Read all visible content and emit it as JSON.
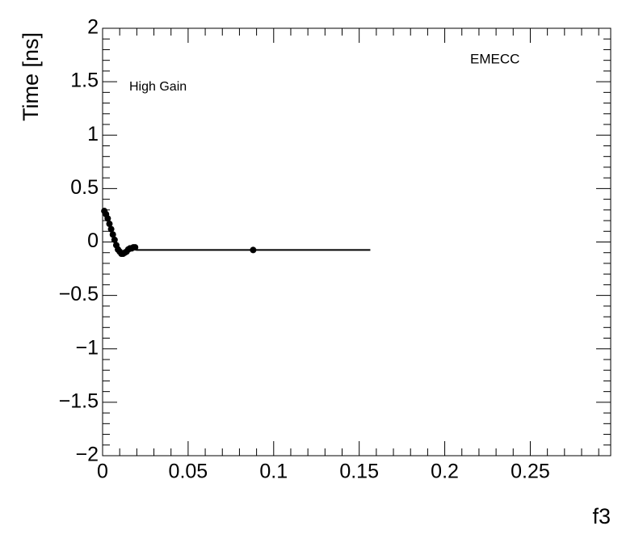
{
  "chart_data": {
    "type": "scatter",
    "ylabel": "Time [ns]",
    "xlabel": "f3",
    "annotations": [
      "High Gain",
      "EMECC"
    ],
    "x": [
      0.001,
      0.002,
      0.003,
      0.004,
      0.005,
      0.006,
      0.007,
      0.008,
      0.009,
      0.01,
      0.011,
      0.012,
      0.013,
      0.014,
      0.015,
      0.016,
      0.017,
      0.018,
      0.019,
      0.088
    ],
    "values": [
      0.29,
      0.26,
      0.22,
      0.17,
      0.12,
      0.07,
      0.02,
      -0.03,
      -0.07,
      -0.09,
      -0.11,
      -0.11,
      -0.1,
      -0.09,
      -0.07,
      -0.06,
      -0.06,
      -0.05,
      -0.05,
      -0.075
    ],
    "xerr": [
      0.0005,
      0.0005,
      0.0005,
      0.0005,
      0.0005,
      0.0005,
      0.0005,
      0.0005,
      0.0005,
      0.0005,
      0.0005,
      0.0005,
      0.0005,
      0.0005,
      0.0005,
      0.0005,
      0.0005,
      0.0005,
      0.0005,
      0.0685
    ],
    "color": "#000000",
    "xlim": [
      0,
      0.297
    ],
    "xticks": [
      0,
      0.05,
      0.1,
      0.15,
      0.2,
      0.25
    ],
    "ylim": [
      -2,
      2
    ],
    "yticks": [
      {
        "value": -2,
        "label": "−2"
      },
      {
        "value": -1.5,
        "label": "−1.5"
      },
      {
        "value": -1,
        "label": "−1"
      },
      {
        "value": -0.5,
        "label": "−0.5"
      },
      0,
      0.5,
      1,
      1.5,
      2
    ]
  }
}
